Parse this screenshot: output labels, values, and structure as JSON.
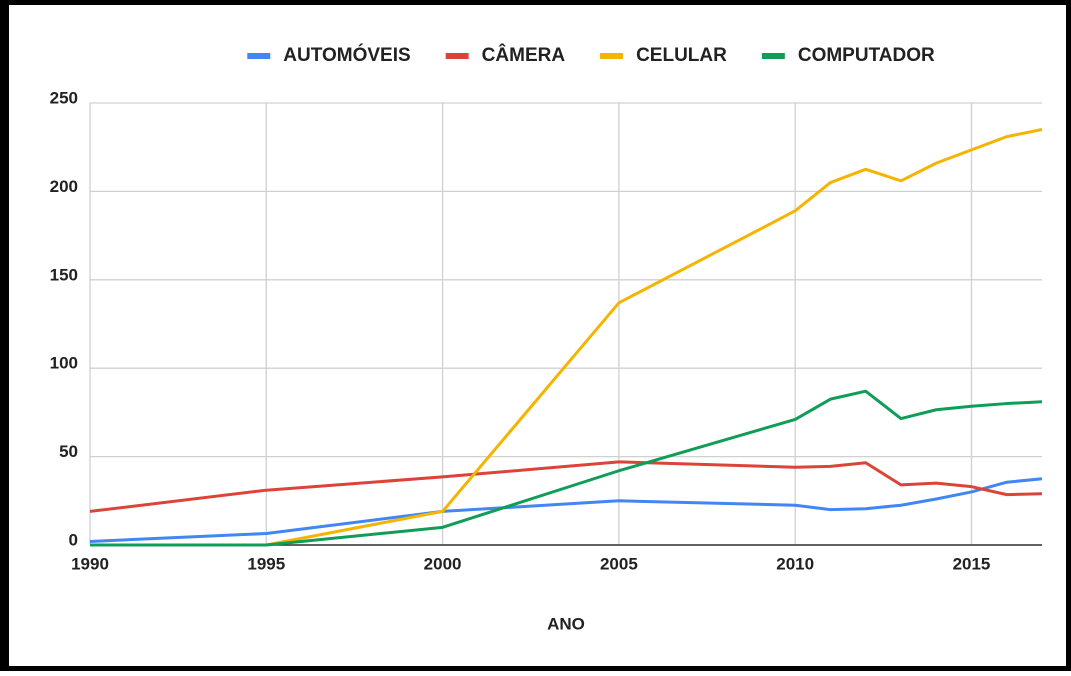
{
  "chart_data": {
    "type": "line",
    "x_label": "ANO",
    "x": [
      1990,
      1995,
      2000,
      2005,
      2010,
      2011,
      2012,
      2013,
      2014,
      2015,
      2016,
      2017
    ],
    "series": [
      {
        "name": "AUTOMÓVEIS",
        "color": "#4285f4",
        "values": [
          2,
          6.5,
          19,
          25,
          22.5,
          20,
          20.5,
          22.5,
          26,
          30,
          35.5,
          37.5
        ]
      },
      {
        "name": "CÂMERA",
        "color": "#db4437",
        "values": [
          19,
          31,
          38.5,
          47,
          44,
          44.5,
          46.5,
          34,
          35,
          33,
          28.5,
          29
        ]
      },
      {
        "name": "CELULAR",
        "color": "#f4b400",
        "values": [
          0,
          0,
          19,
          137,
          189,
          205,
          212.5,
          206,
          216,
          223.5,
          231,
          235
        ]
      },
      {
        "name": "COMPUTADOR",
        "color": "#0f9d58",
        "values": [
          0,
          0,
          10,
          42,
          71,
          82.5,
          87,
          71.5,
          76.5,
          78.5,
          80,
          81
        ]
      }
    ],
    "xlim": [
      1990,
      2017
    ],
    "xticks": [
      1990,
      1995,
      2000,
      2005,
      2010,
      2015
    ],
    "ylim": [
      0,
      250
    ],
    "yticks": [
      0,
      50,
      100,
      150,
      200,
      250
    ],
    "grid": true,
    "legend": "top"
  }
}
